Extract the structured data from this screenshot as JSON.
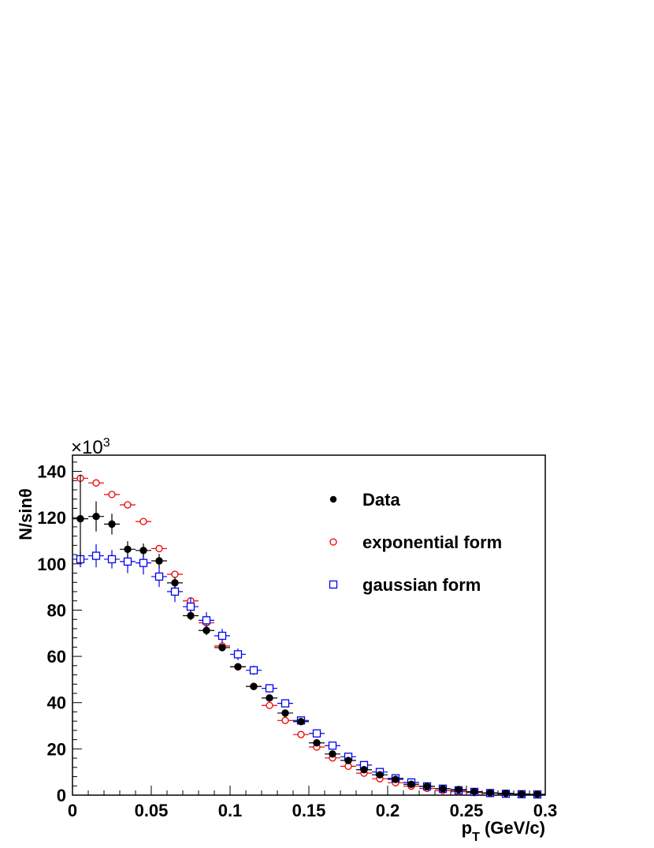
{
  "chart_data": {
    "type": "scatter",
    "xlabel": "p",
    "xlabel_sub": "T",
    "xlabel_units": "(GeV/c)",
    "ylabel": "N/sinθ",
    "y_exponent_label": "×10",
    "y_exponent_power": "3",
    "xlim": [
      0,
      0.3
    ],
    "ylim": [
      0,
      147
    ],
    "x_ticks": [
      "0",
      "0.05",
      "0.1",
      "0.15",
      "0.2",
      "0.25",
      "0.3"
    ],
    "y_ticks": [
      "0",
      "20",
      "40",
      "60",
      "80",
      "100",
      "120",
      "140"
    ],
    "x_tick_values": [
      0,
      0.05,
      0.1,
      0.15,
      0.2,
      0.25,
      0.3
    ],
    "y_tick_values": [
      0,
      20,
      40,
      60,
      80,
      100,
      120,
      140
    ],
    "bin_width": 0.01,
    "legend_position": "top-right",
    "x": [
      0.005,
      0.015,
      0.025,
      0.035,
      0.045,
      0.055,
      0.065,
      0.075,
      0.085,
      0.095,
      0.105,
      0.115,
      0.125,
      0.135,
      0.145,
      0.155,
      0.165,
      0.175,
      0.185,
      0.195,
      0.205,
      0.215,
      0.225,
      0.235,
      0.245,
      0.255,
      0.265,
      0.275,
      0.285,
      0.295
    ],
    "series": [
      {
        "name": "Data",
        "marker": "filled-circle",
        "color": "#000000",
        "values": [
          119.5,
          120.5,
          117.2,
          106.3,
          105.8,
          101.3,
          91.8,
          77.6,
          71.2,
          63.8,
          55.5,
          47.0,
          42.0,
          35.5,
          31.8,
          22.6,
          17.8,
          15.0,
          11.0,
          8.8,
          6.8,
          4.7,
          3.8,
          2.8,
          2.4,
          1.5,
          1.0,
          0.8,
          0.5,
          0.4
        ],
        "errors": [
          19.0,
          6.5,
          4.5,
          3.5,
          3.0,
          3.0,
          2.5,
          2.0,
          2.0,
          1.5,
          1.5,
          1.2,
          1.2,
          1.0,
          1.0,
          1.0,
          0.8,
          0.8,
          0.6,
          0.6,
          0.5,
          0.5,
          0.4,
          0.4,
          0.3,
          0.3,
          0.3,
          0.3,
          0.3,
          0.3
        ]
      },
      {
        "name": "exponential form",
        "marker": "open-circle",
        "color": "#ee0000",
        "values": [
          137.0,
          135.0,
          130.0,
          125.5,
          118.3,
          106.6,
          95.5,
          84.0,
          74.5,
          64.5,
          55.5,
          47.0,
          38.8,
          32.3,
          26.2,
          20.8,
          16.1,
          12.5,
          9.5,
          7.1,
          5.4,
          3.9,
          2.9,
          2.0,
          1.5,
          1.1,
          0.8,
          0.5,
          0.4,
          0.3
        ],
        "errors": [
          1.5,
          1.5,
          1.5,
          1.3,
          1.2,
          1.1,
          1.0,
          0.9,
          0.8,
          0.7,
          0.6,
          0.5,
          0.5,
          0.4,
          0.4,
          0.3,
          0.3,
          0.3,
          0.2,
          0.2,
          0.2,
          0.2,
          0.1,
          0.1,
          0.1,
          0.1,
          0.1,
          0.1,
          0.1,
          0.1
        ]
      },
      {
        "name": "gaussian form",
        "marker": "open-square",
        "color": "#0000ee",
        "values": [
          102.0,
          103.5,
          102.0,
          101.0,
          100.4,
          94.5,
          88.0,
          81.5,
          75.6,
          68.9,
          60.9,
          54.0,
          46.2,
          39.7,
          32.3,
          26.7,
          21.4,
          16.6,
          13.0,
          10.0,
          7.3,
          5.5,
          3.8,
          2.8,
          2.1,
          1.4,
          0.9,
          0.6,
          0.4,
          0.3
        ],
        "errors": [
          3.5,
          5.0,
          4.0,
          5.0,
          5.0,
          4.5,
          4.5,
          4.0,
          3.5,
          3.0,
          2.5,
          2.0,
          1.8,
          1.5,
          1.2,
          1.0,
          0.8,
          0.7,
          0.6,
          0.5,
          0.4,
          0.4,
          0.3,
          0.3,
          0.3,
          0.2,
          0.2,
          0.2,
          0.2,
          0.2
        ]
      }
    ]
  }
}
